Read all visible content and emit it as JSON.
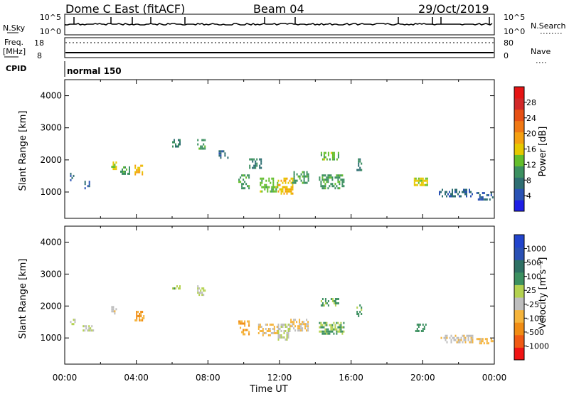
{
  "header": {
    "station": "Dome C East (fitACF)",
    "beam": "Beam 04",
    "date": "29/Oct/2019"
  },
  "strips": {
    "nsky_label": "N.Sky",
    "nsky_ticks": [
      "10^5",
      "10^0"
    ],
    "nsearch_label": "N.Search",
    "freq_label_1": "Freq.",
    "freq_label_2": "[MHz]",
    "freq_ticks": [
      "18",
      "8"
    ],
    "nave_label": "Nave",
    "nave_ticks": [
      "80",
      "0"
    ],
    "cpid_label": "CPID",
    "cpid_value": "normal 150"
  },
  "axes": {
    "ylabel": "Slant Range [km]",
    "xlabel": "Time UT",
    "yticks": [
      "1000",
      "2000",
      "3000",
      "4000"
    ],
    "xticks": [
      "00:00",
      "04:00",
      "08:00",
      "12:00",
      "16:00",
      "20:00",
      "00:00"
    ]
  },
  "colors": {
    "power_scale": [
      "#1e1ee6",
      "#2a52b4",
      "#2e6e72",
      "#3c9060",
      "#64be2c",
      "#e6c800",
      "#f5a010",
      "#f07814",
      "#e65014",
      "#d22828",
      "#e61414"
    ],
    "velocity_scale": [
      "#f01414",
      "#f05a14",
      "#f08c14",
      "#f5b43c",
      "#bebebe",
      "#b4d250",
      "#3c9060",
      "#2e7064",
      "#2a50b4",
      "#2244cc"
    ],
    "background": "#ffffff"
  },
  "chart_data": [
    {
      "type": "heatmap",
      "name": "power",
      "xlabel": "Time UT",
      "ylabel": "Slant Range [km]",
      "xlim": [
        0,
        24
      ],
      "ylim": [
        180,
        4500
      ],
      "colorbar": {
        "label": "Power [dB]",
        "ticks": [
          "4",
          "8",
          "12",
          "16",
          "20",
          "24",
          "28"
        ],
        "range": [
          0,
          30
        ]
      },
      "patches": [
        {
          "t0": 0.3,
          "t1": 0.5,
          "r0": 1400,
          "r1": 1600,
          "v": 6
        },
        {
          "t0": 1.1,
          "t1": 1.4,
          "r0": 1150,
          "r1": 1350,
          "v": 5
        },
        {
          "t0": 2.6,
          "t1": 2.9,
          "r0": 1700,
          "r1": 1950,
          "v": 14
        },
        {
          "t0": 3.1,
          "t1": 3.6,
          "r0": 1600,
          "r1": 1800,
          "v": 10
        },
        {
          "t0": 3.9,
          "t1": 4.3,
          "r0": 1550,
          "r1": 1850,
          "v": 16
        },
        {
          "t0": 6.0,
          "t1": 6.4,
          "r0": 2450,
          "r1": 2650,
          "v": 8
        },
        {
          "t0": 7.4,
          "t1": 7.8,
          "r0": 2350,
          "r1": 2650,
          "v": 10
        },
        {
          "t0": 8.6,
          "t1": 9.1,
          "r0": 2050,
          "r1": 2300,
          "v": 6
        },
        {
          "t0": 9.7,
          "t1": 10.3,
          "r0": 1100,
          "r1": 1550,
          "v": 10
        },
        {
          "t0": 10.3,
          "t1": 11.0,
          "r0": 1750,
          "r1": 2050,
          "v": 8
        },
        {
          "t0": 10.9,
          "t1": 11.9,
          "r0": 1050,
          "r1": 1450,
          "v": 12
        },
        {
          "t0": 11.9,
          "t1": 12.7,
          "r0": 950,
          "r1": 1450,
          "v": 16
        },
        {
          "t0": 12.7,
          "t1": 13.6,
          "r0": 1300,
          "r1": 1650,
          "v": 10
        },
        {
          "t0": 14.3,
          "t1": 15.3,
          "r0": 2000,
          "r1": 2250,
          "v": 12
        },
        {
          "t0": 14.2,
          "t1": 15.6,
          "r0": 1150,
          "r1": 1550,
          "v": 10
        },
        {
          "t0": 16.3,
          "t1": 16.6,
          "r0": 1700,
          "r1": 2050,
          "v": 8
        },
        {
          "t0": 19.5,
          "t1": 20.3,
          "r0": 1200,
          "r1": 1450,
          "v": 14
        },
        {
          "t0": 20.9,
          "t1": 22.8,
          "r0": 850,
          "r1": 1100,
          "v": 6
        },
        {
          "t0": 23.0,
          "t1": 23.9,
          "r0": 800,
          "r1": 1000,
          "v": 6
        }
      ]
    },
    {
      "type": "heatmap",
      "name": "velocity",
      "xlabel": "Time UT",
      "ylabel": "Slant Range [km]",
      "xlim": [
        0,
        24
      ],
      "ylim": [
        180,
        4500
      ],
      "colorbar": {
        "label": "Velocity [m s⁻¹]",
        "ticks": [
          "-1000",
          "-500",
          "-100",
          "-25",
          "25",
          "100",
          "500",
          "1000"
        ],
        "range": [
          -1200,
          1200
        ]
      },
      "patches": [
        {
          "t0": 0.3,
          "t1": 0.6,
          "r0": 1400,
          "r1": 1600,
          "v": 10
        },
        {
          "t0": 1.0,
          "t1": 1.6,
          "r0": 1250,
          "r1": 1400,
          "v": 0
        },
        {
          "t0": 2.6,
          "t1": 2.9,
          "r0": 1700,
          "r1": 2000,
          "v": -150
        },
        {
          "t0": 3.9,
          "t1": 4.4,
          "r0": 1550,
          "r1": 1850,
          "v": -450
        },
        {
          "t0": 6.0,
          "t1": 6.4,
          "r0": 2450,
          "r1": 2650,
          "v": 150
        },
        {
          "t0": 7.4,
          "t1": 7.8,
          "r0": 2350,
          "r1": 2650,
          "v": 40
        },
        {
          "t0": 9.7,
          "t1": 10.3,
          "r0": 1100,
          "r1": 1550,
          "v": -450
        },
        {
          "t0": 10.8,
          "t1": 11.9,
          "r0": 1100,
          "r1": 1450,
          "v": -300
        },
        {
          "t0": 11.9,
          "t1": 12.6,
          "r0": 950,
          "r1": 1450,
          "v": -40
        },
        {
          "t0": 12.6,
          "t1": 13.6,
          "r0": 1250,
          "r1": 1600,
          "v": -200
        },
        {
          "t0": 14.3,
          "t1": 15.3,
          "r0": 2000,
          "r1": 2250,
          "v": 300
        },
        {
          "t0": 14.2,
          "t1": 15.6,
          "r0": 1150,
          "r1": 1500,
          "v": 250
        },
        {
          "t0": 16.3,
          "t1": 16.6,
          "r0": 1700,
          "r1": 2050,
          "v": 300
        },
        {
          "t0": 19.5,
          "t1": 20.2,
          "r0": 1200,
          "r1": 1450,
          "v": 300
        },
        {
          "t0": 21.0,
          "t1": 22.8,
          "r0": 850,
          "r1": 1100,
          "v": -150
        },
        {
          "t0": 23.0,
          "t1": 23.9,
          "r0": 800,
          "r1": 1000,
          "v": -300
        }
      ]
    }
  ]
}
